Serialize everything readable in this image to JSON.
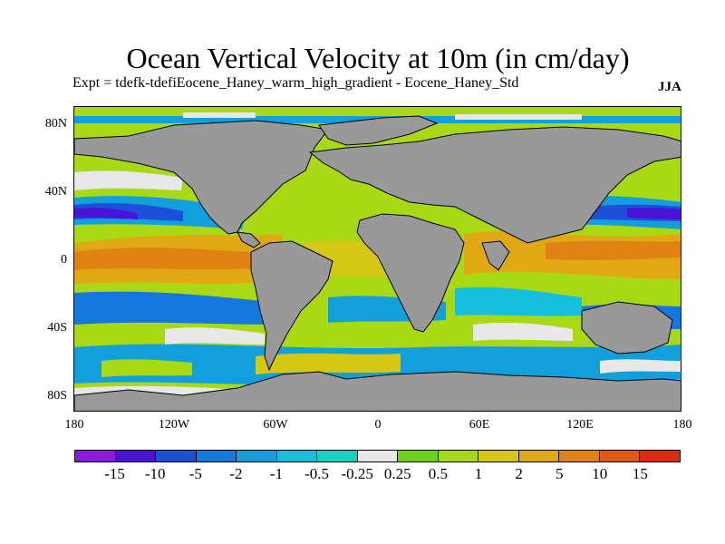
{
  "title": "Ocean Vertical Velocity at 10m (in cm/day)",
  "subtitle": "Expt = tdefk-tdefiEocene_Haney_warm_high_gradient - Eocene_Haney_Std",
  "season": "JJA",
  "axes": {
    "lat_labels": [
      "80N",
      "40N",
      "0",
      "40S",
      "80S"
    ],
    "lon_labels": [
      "180",
      "120W",
      "60W",
      "0",
      "60E",
      "120E",
      "180"
    ]
  },
  "colorbar": {
    "colors": [
      "#8a1be0",
      "#4a14d8",
      "#1e4fd8",
      "#1478dc",
      "#11a0dc",
      "#14c0de",
      "#13d2c0",
      "#e8e8e8",
      "#6cd214",
      "#a8d914",
      "#d4c814",
      "#e0a914",
      "#e08214",
      "#e05a14",
      "#e0280e"
    ],
    "labels": [
      "-15",
      "-10",
      "-5",
      "-2",
      "-1",
      "-0.5",
      "-0.25",
      "0.25",
      "0.5",
      "1",
      "2",
      "5",
      "10",
      "15"
    ]
  },
  "map_colors": {
    "land": "#999999",
    "coast": "#000000"
  }
}
